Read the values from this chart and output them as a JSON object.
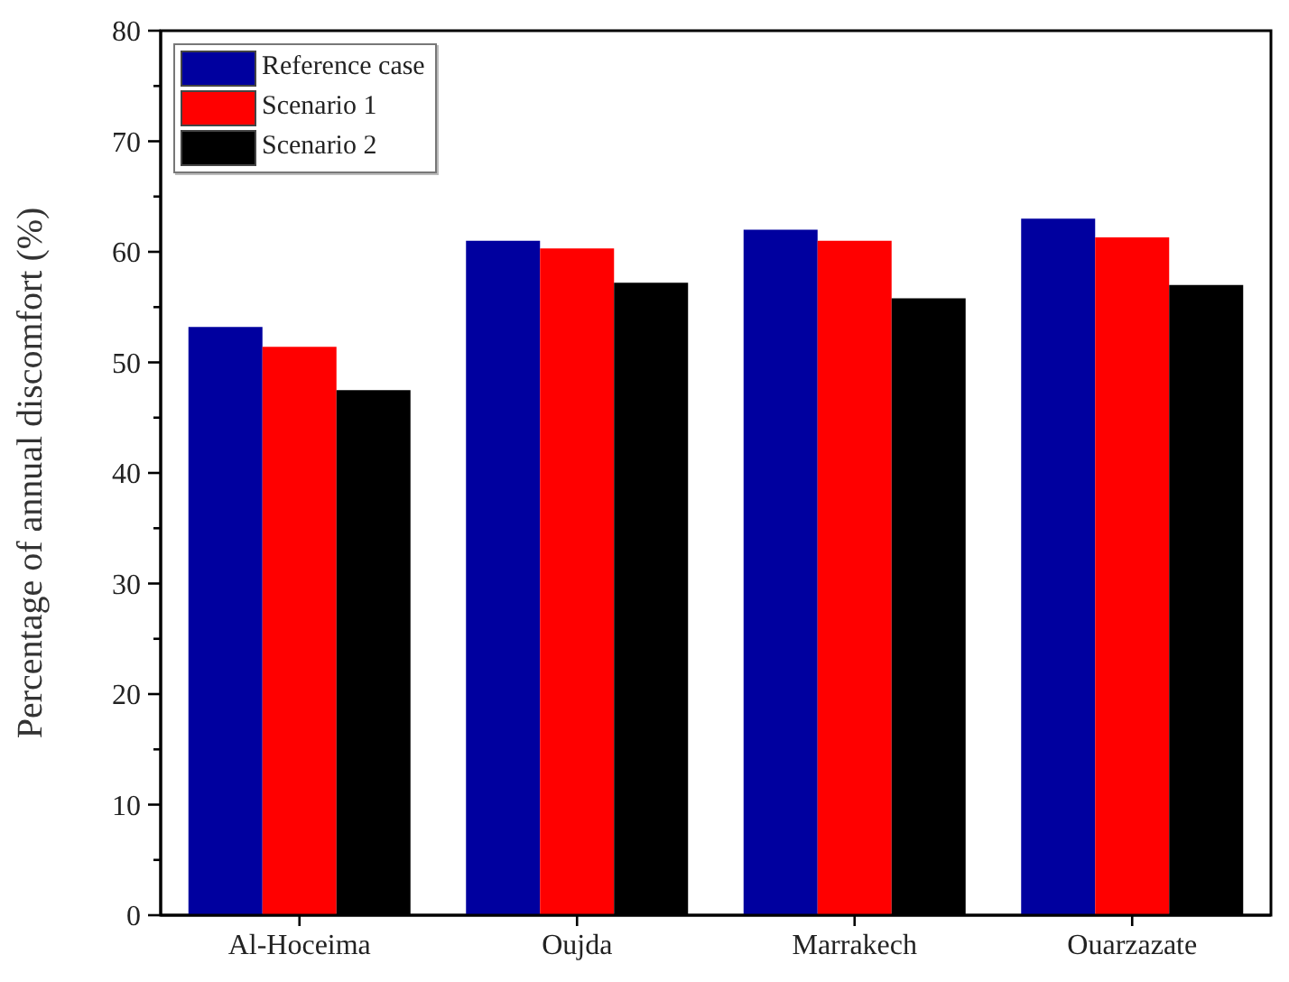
{
  "chart_data": {
    "type": "bar",
    "ylabel": "Percentage of annual discomfort (%)",
    "categories": [
      "Al-Hoceima",
      "Oujda",
      "Marrakech",
      "Ouarzazate"
    ],
    "series": [
      {
        "name": "Reference case",
        "color": "#00009f",
        "values": [
          53.2,
          61.0,
          62.0,
          63.0
        ]
      },
      {
        "name": "Scenario 1",
        "color": "#ff0000",
        "values": [
          51.4,
          60.3,
          61.0,
          61.3
        ]
      },
      {
        "name": "Scenario 2",
        "color": "#000000",
        "values": [
          47.5,
          57.2,
          55.8,
          57.0
        ]
      }
    ],
    "ylim": [
      0,
      80
    ],
    "yticks": [
      0,
      {
        "value": 5,
        "label": null
      },
      10,
      {
        "value": 15,
        "label": null
      },
      20,
      {
        "value": 25,
        "label": null
      },
      30,
      {
        "value": 35,
        "label": null
      },
      40,
      {
        "value": 45,
        "label": null
      },
      50,
      {
        "value": 55,
        "label": null
      },
      60,
      {
        "value": 65,
        "label": null
      },
      70,
      {
        "value": 75,
        "label": null
      },
      80
    ],
    "legend": "top left"
  }
}
